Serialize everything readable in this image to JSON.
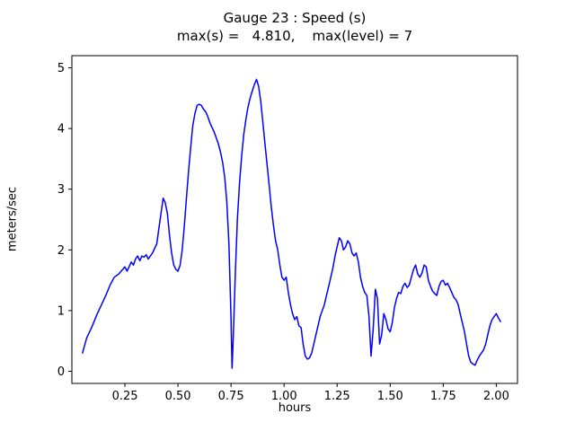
{
  "chart_data": {
    "type": "line",
    "title": "Gauge 23 : Speed (s)",
    "subtitle": "max(s) =   4.810,    max(level) = 7",
    "xlabel": "hours",
    "ylabel": "meters/sec",
    "xlim": [
      0.0,
      2.1
    ],
    "ylim": [
      -0.2,
      5.2
    ],
    "grid": false,
    "legend_position": "none",
    "background": "#ffffff",
    "frame_color": "#000000",
    "x_ticks": {
      "values": [
        0.25,
        0.5,
        0.75,
        1.0,
        1.25,
        1.5,
        1.75,
        2.0
      ],
      "labels": [
        "0.25",
        "0.50",
        "0.75",
        "1.00",
        "1.25",
        "1.50",
        "1.75",
        "2.00"
      ]
    },
    "y_ticks": {
      "values": [
        0,
        1,
        2,
        3,
        4,
        5
      ],
      "labels": [
        "0",
        "1",
        "2",
        "3",
        "4",
        "5"
      ]
    },
    "stats": {
      "max_s": 4.81,
      "max_level": 7
    },
    "series": [
      {
        "name": "Speed (s)",
        "color": "#0000ff",
        "points": [
          [
            0.05,
            0.3
          ],
          [
            0.07,
            0.55
          ],
          [
            0.09,
            0.7
          ],
          [
            0.1,
            0.78
          ],
          [
            0.12,
            0.95
          ],
          [
            0.14,
            1.1
          ],
          [
            0.16,
            1.25
          ],
          [
            0.18,
            1.42
          ],
          [
            0.2,
            1.55
          ],
          [
            0.22,
            1.6
          ],
          [
            0.24,
            1.68
          ],
          [
            0.25,
            1.72
          ],
          [
            0.26,
            1.65
          ],
          [
            0.28,
            1.8
          ],
          [
            0.29,
            1.75
          ],
          [
            0.3,
            1.85
          ],
          [
            0.31,
            1.9
          ],
          [
            0.32,
            1.82
          ],
          [
            0.33,
            1.9
          ],
          [
            0.34,
            1.88
          ],
          [
            0.35,
            1.92
          ],
          [
            0.36,
            1.85
          ],
          [
            0.37,
            1.9
          ],
          [
            0.38,
            1.95
          ],
          [
            0.4,
            2.1
          ],
          [
            0.41,
            2.35
          ],
          [
            0.42,
            2.6
          ],
          [
            0.43,
            2.85
          ],
          [
            0.44,
            2.78
          ],
          [
            0.45,
            2.6
          ],
          [
            0.46,
            2.25
          ],
          [
            0.47,
            1.95
          ],
          [
            0.48,
            1.75
          ],
          [
            0.49,
            1.68
          ],
          [
            0.5,
            1.65
          ],
          [
            0.51,
            1.75
          ],
          [
            0.52,
            2.0
          ],
          [
            0.53,
            2.4
          ],
          [
            0.54,
            2.85
          ],
          [
            0.55,
            3.3
          ],
          [
            0.56,
            3.7
          ],
          [
            0.57,
            4.05
          ],
          [
            0.58,
            4.25
          ],
          [
            0.59,
            4.38
          ],
          [
            0.6,
            4.4
          ],
          [
            0.61,
            4.38
          ],
          [
            0.62,
            4.32
          ],
          [
            0.63,
            4.28
          ],
          [
            0.64,
            4.2
          ],
          [
            0.65,
            4.1
          ],
          [
            0.66,
            4.02
          ],
          [
            0.67,
            3.95
          ],
          [
            0.68,
            3.85
          ],
          [
            0.69,
            3.75
          ],
          [
            0.7,
            3.62
          ],
          [
            0.71,
            3.45
          ],
          [
            0.72,
            3.2
          ],
          [
            0.73,
            2.8
          ],
          [
            0.74,
            2.1
          ],
          [
            0.75,
            0.9
          ],
          [
            0.755,
            0.05
          ],
          [
            0.76,
            0.5
          ],
          [
            0.77,
            1.6
          ],
          [
            0.78,
            2.5
          ],
          [
            0.79,
            3.1
          ],
          [
            0.8,
            3.55
          ],
          [
            0.81,
            3.9
          ],
          [
            0.82,
            4.15
          ],
          [
            0.83,
            4.35
          ],
          [
            0.84,
            4.5
          ],
          [
            0.85,
            4.62
          ],
          [
            0.86,
            4.72
          ],
          [
            0.87,
            4.81
          ],
          [
            0.88,
            4.7
          ],
          [
            0.89,
            4.45
          ],
          [
            0.9,
            4.1
          ],
          [
            0.91,
            3.75
          ],
          [
            0.92,
            3.4
          ],
          [
            0.93,
            3.05
          ],
          [
            0.94,
            2.7
          ],
          [
            0.95,
            2.4
          ],
          [
            0.96,
            2.15
          ],
          [
            0.97,
            2.0
          ],
          [
            0.98,
            1.75
          ],
          [
            0.99,
            1.55
          ],
          [
            1.0,
            1.5
          ],
          [
            1.01,
            1.55
          ],
          [
            1.02,
            1.3
          ],
          [
            1.03,
            1.1
          ],
          [
            1.04,
            0.95
          ],
          [
            1.05,
            0.85
          ],
          [
            1.06,
            0.9
          ],
          [
            1.07,
            0.75
          ],
          [
            1.08,
            0.72
          ],
          [
            1.09,
            0.45
          ],
          [
            1.1,
            0.25
          ],
          [
            1.11,
            0.2
          ],
          [
            1.12,
            0.22
          ],
          [
            1.13,
            0.3
          ],
          [
            1.14,
            0.45
          ],
          [
            1.15,
            0.6
          ],
          [
            1.16,
            0.75
          ],
          [
            1.17,
            0.9
          ],
          [
            1.18,
            1.0
          ],
          [
            1.19,
            1.1
          ],
          [
            1.2,
            1.25
          ],
          [
            1.21,
            1.4
          ],
          [
            1.22,
            1.55
          ],
          [
            1.23,
            1.7
          ],
          [
            1.24,
            1.9
          ],
          [
            1.25,
            2.05
          ],
          [
            1.26,
            2.2
          ],
          [
            1.27,
            2.15
          ],
          [
            1.28,
            2.0
          ],
          [
            1.29,
            2.05
          ],
          [
            1.3,
            2.15
          ],
          [
            1.31,
            2.1
          ],
          [
            1.32,
            1.95
          ],
          [
            1.33,
            1.9
          ],
          [
            1.34,
            1.95
          ],
          [
            1.35,
            1.8
          ],
          [
            1.36,
            1.55
          ],
          [
            1.37,
            1.4
          ],
          [
            1.38,
            1.3
          ],
          [
            1.39,
            1.25
          ],
          [
            1.4,
            0.9
          ],
          [
            1.41,
            0.25
          ],
          [
            1.42,
            0.7
          ],
          [
            1.43,
            1.35
          ],
          [
            1.44,
            1.2
          ],
          [
            1.45,
            0.45
          ],
          [
            1.46,
            0.6
          ],
          [
            1.47,
            0.95
          ],
          [
            1.48,
            0.85
          ],
          [
            1.49,
            0.7
          ],
          [
            1.5,
            0.65
          ],
          [
            1.51,
            0.8
          ],
          [
            1.52,
            1.05
          ],
          [
            1.53,
            1.2
          ],
          [
            1.54,
            1.3
          ],
          [
            1.55,
            1.28
          ],
          [
            1.56,
            1.4
          ],
          [
            1.57,
            1.45
          ],
          [
            1.58,
            1.38
          ],
          [
            1.59,
            1.42
          ],
          [
            1.6,
            1.55
          ],
          [
            1.61,
            1.68
          ],
          [
            1.62,
            1.75
          ],
          [
            1.63,
            1.6
          ],
          [
            1.64,
            1.55
          ],
          [
            1.65,
            1.62
          ],
          [
            1.66,
            1.75
          ],
          [
            1.67,
            1.72
          ],
          [
            1.68,
            1.5
          ],
          [
            1.69,
            1.4
          ],
          [
            1.7,
            1.32
          ],
          [
            1.71,
            1.28
          ],
          [
            1.72,
            1.25
          ],
          [
            1.73,
            1.4
          ],
          [
            1.74,
            1.48
          ],
          [
            1.75,
            1.5
          ],
          [
            1.76,
            1.42
          ],
          [
            1.77,
            1.45
          ],
          [
            1.78,
            1.38
          ],
          [
            1.79,
            1.3
          ],
          [
            1.8,
            1.22
          ],
          [
            1.81,
            1.18
          ],
          [
            1.82,
            1.1
          ],
          [
            1.83,
            0.95
          ],
          [
            1.84,
            0.8
          ],
          [
            1.85,
            0.65
          ],
          [
            1.86,
            0.45
          ],
          [
            1.87,
            0.25
          ],
          [
            1.88,
            0.15
          ],
          [
            1.89,
            0.12
          ],
          [
            1.9,
            0.1
          ],
          [
            1.91,
            0.18
          ],
          [
            1.92,
            0.25
          ],
          [
            1.93,
            0.3
          ],
          [
            1.94,
            0.35
          ],
          [
            1.95,
            0.45
          ],
          [
            1.96,
            0.6
          ],
          [
            1.97,
            0.75
          ],
          [
            1.98,
            0.85
          ],
          [
            1.99,
            0.9
          ],
          [
            2.0,
            0.95
          ],
          [
            2.01,
            0.88
          ],
          [
            2.02,
            0.82
          ]
        ]
      }
    ]
  }
}
